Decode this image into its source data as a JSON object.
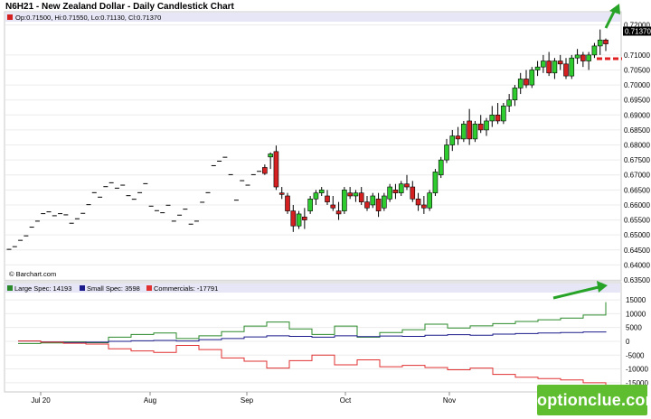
{
  "title": "N6H21 - New Zealand Dollar - Daily Candlestick Chart",
  "ohlc_label": "Op:0.71500, Hi:0.71550, Lo:0.71130, Cl:0.71370",
  "price_tag": "0.71370",
  "source_credit": "© Barchart.com",
  "watermark": "optionclue.com",
  "colors": {
    "up": "#2ecc2e",
    "down": "#d42020",
    "annotation": "#27a327",
    "dashed": "#e02020",
    "large": "#2a8a2a",
    "small": "#1a1a8a",
    "commercials": "#e03030"
  },
  "chart_data": [
    {
      "type": "candlestick",
      "title": "N6H21 - New Zealand Dollar - Daily Candlestick Chart",
      "ylim": [
        0.635,
        0.7205
      ],
      "y_ticks": [
        "0.72000",
        "0.71000",
        "0.70500",
        "0.70000",
        "0.69500",
        "0.69000",
        "0.68500",
        "0.68000",
        "0.67500",
        "0.67000",
        "0.66500",
        "0.66000",
        "0.65500",
        "0.65000",
        "0.64500",
        "0.64000",
        "0.63500"
      ],
      "x_ticks": [
        "Jul 20",
        "Aug",
        "Sep",
        "Oct",
        "Nov"
      ],
      "annotations": [
        "green arrow up",
        "red dashed level 0.7050"
      ],
      "ohlc": [
        [
          0.645,
          0.6455,
          0.6448,
          0.6452
        ],
        [
          0.646,
          0.6464,
          0.6457,
          0.6461
        ],
        [
          0.648,
          0.6484,
          0.6478,
          0.6482
        ],
        [
          0.6495,
          0.6499,
          0.6493,
          0.6497
        ],
        [
          0.6525,
          0.6529,
          0.6522,
          0.6526
        ],
        [
          0.6545,
          0.6549,
          0.6542,
          0.6546
        ],
        [
          0.657,
          0.6574,
          0.6568,
          0.6571
        ],
        [
          0.6578,
          0.6581,
          0.6575,
          0.6577
        ],
        [
          0.6563,
          0.6566,
          0.656,
          0.6564
        ],
        [
          0.6572,
          0.6575,
          0.6569,
          0.6571
        ],
        [
          0.6568,
          0.6571,
          0.6565,
          0.6567
        ],
        [
          0.6538,
          0.6541,
          0.6535,
          0.6539
        ],
        [
          0.6555,
          0.6558,
          0.6552,
          0.6554
        ],
        [
          0.6572,
          0.6575,
          0.6569,
          0.6572
        ],
        [
          0.66,
          0.6603,
          0.6597,
          0.6601
        ],
        [
          0.664,
          0.6643,
          0.6637,
          0.6641
        ],
        [
          0.6625,
          0.6628,
          0.6622,
          0.6626
        ],
        [
          0.666,
          0.6663,
          0.6657,
          0.6661
        ],
        [
          0.6673,
          0.6676,
          0.667,
          0.6674
        ],
        [
          0.6655,
          0.6658,
          0.6652,
          0.6656
        ],
        [
          0.6665,
          0.6668,
          0.6662,
          0.6666
        ],
        [
          0.663,
          0.6633,
          0.6627,
          0.6631
        ],
        [
          0.6618,
          0.6621,
          0.6615,
          0.6619
        ],
        [
          0.664,
          0.6643,
          0.6637,
          0.6641
        ],
        [
          0.667,
          0.6673,
          0.6667,
          0.6671
        ],
        [
          0.6595,
          0.6598,
          0.6592,
          0.6596
        ],
        [
          0.658,
          0.6583,
          0.6577,
          0.6581
        ],
        [
          0.6573,
          0.6576,
          0.657,
          0.6574
        ],
        [
          0.6598,
          0.6601,
          0.6595,
          0.6599
        ],
        [
          0.6545,
          0.6548,
          0.6542,
          0.6546
        ],
        [
          0.6565,
          0.6568,
          0.6562,
          0.6566
        ],
        [
          0.6585,
          0.6588,
          0.6582,
          0.6586
        ],
        [
          0.6535,
          0.6538,
          0.6532,
          0.6536
        ],
        [
          0.6545,
          0.6548,
          0.6542,
          0.6546
        ],
        [
          0.6608,
          0.6611,
          0.6605,
          0.6609
        ],
        [
          0.664,
          0.6643,
          0.6637,
          0.6641
        ],
        [
          0.673,
          0.6733,
          0.6727,
          0.6731
        ],
        [
          0.6745,
          0.6748,
          0.6742,
          0.6746
        ],
        [
          0.6758,
          0.6761,
          0.6755,
          0.6759
        ],
        [
          0.67,
          0.6703,
          0.6697,
          0.6701
        ],
        [
          0.6615,
          0.6618,
          0.6612,
          0.6616
        ],
        [
          0.668,
          0.6683,
          0.6677,
          0.6681
        ],
        [
          0.6665,
          0.6668,
          0.6662,
          0.6666
        ],
        [
          0.67,
          0.6703,
          0.6697,
          0.6701
        ],
        [
          0.671,
          0.6716,
          0.6705,
          0.6712
        ],
        [
          0.6725,
          0.6735,
          0.67,
          0.6705
        ],
        [
          0.676,
          0.6775,
          0.672,
          0.677
        ],
        [
          0.6778,
          0.6798,
          0.665,
          0.666
        ],
        [
          0.664,
          0.666,
          0.662,
          0.6635
        ],
        [
          0.663,
          0.664,
          0.657,
          0.658
        ],
        [
          0.658,
          0.66,
          0.651,
          0.653
        ],
        [
          0.653,
          0.658,
          0.652,
          0.657
        ],
        [
          0.656,
          0.659,
          0.652,
          0.655
        ],
        [
          0.658,
          0.663,
          0.657,
          0.662
        ],
        [
          0.662,
          0.665,
          0.66,
          0.664
        ],
        [
          0.664,
          0.666,
          0.663,
          0.665
        ],
        [
          0.663,
          0.665,
          0.66,
          0.661
        ],
        [
          0.66,
          0.663,
          0.658,
          0.659
        ],
        [
          0.658,
          0.661,
          0.655,
          0.657
        ],
        [
          0.658,
          0.666,
          0.657,
          0.665
        ],
        [
          0.664,
          0.666,
          0.662,
          0.663
        ],
        [
          0.663,
          0.665,
          0.661,
          0.664
        ],
        [
          0.664,
          0.666,
          0.66,
          0.661
        ],
        [
          0.661,
          0.663,
          0.658,
          0.659
        ],
        [
          0.66,
          0.664,
          0.659,
          0.663
        ],
        [
          0.662,
          0.664,
          0.656,
          0.658
        ],
        [
          0.659,
          0.664,
          0.658,
          0.663
        ],
        [
          0.662,
          0.667,
          0.661,
          0.666
        ],
        [
          0.665,
          0.667,
          0.662,
          0.664
        ],
        [
          0.664,
          0.668,
          0.663,
          0.667
        ],
        [
          0.667,
          0.67,
          0.665,
          0.666
        ],
        [
          0.666,
          0.668,
          0.661,
          0.662
        ],
        [
          0.662,
          0.664,
          0.658,
          0.66
        ],
        [
          0.66,
          0.663,
          0.657,
          0.659
        ],
        [
          0.659,
          0.665,
          0.658,
          0.664
        ],
        [
          0.664,
          0.672,
          0.663,
          0.671
        ],
        [
          0.67,
          0.676,
          0.669,
          0.675
        ],
        [
          0.675,
          0.682,
          0.674,
          0.68
        ],
        [
          0.68,
          0.685,
          0.678,
          0.683
        ],
        [
          0.683,
          0.686,
          0.68,
          0.682
        ],
        [
          0.682,
          0.688,
          0.681,
          0.687
        ],
        [
          0.688,
          0.692,
          0.68,
          0.682
        ],
        [
          0.682,
          0.688,
          0.681,
          0.687
        ],
        [
          0.687,
          0.69,
          0.684,
          0.685
        ],
        [
          0.685,
          0.689,
          0.683,
          0.688
        ],
        [
          0.688,
          0.693,
          0.686,
          0.69
        ],
        [
          0.69,
          0.694,
          0.687,
          0.688
        ],
        [
          0.688,
          0.694,
          0.687,
          0.693
        ],
        [
          0.693,
          0.697,
          0.691,
          0.695
        ],
        [
          0.695,
          0.7,
          0.693,
          0.699
        ],
        [
          0.699,
          0.704,
          0.697,
          0.702
        ],
        [
          0.702,
          0.705,
          0.699,
          0.7
        ],
        [
          0.7,
          0.706,
          0.699,
          0.705
        ],
        [
          0.705,
          0.708,
          0.703,
          0.706
        ],
        [
          0.706,
          0.71,
          0.704,
          0.708
        ],
        [
          0.708,
          0.711,
          0.703,
          0.704
        ],
        [
          0.704,
          0.709,
          0.702,
          0.708
        ],
        [
          0.708,
          0.71,
          0.705,
          0.707
        ],
        [
          0.707,
          0.709,
          0.702,
          0.703
        ],
        [
          0.703,
          0.71,
          0.702,
          0.709
        ],
        [
          0.709,
          0.712,
          0.707,
          0.71
        ],
        [
          0.71,
          0.711,
          0.706,
          0.708
        ],
        [
          0.708,
          0.711,
          0.705,
          0.71
        ],
        [
          0.71,
          0.714,
          0.709,
          0.713
        ],
        [
          0.713,
          0.7185,
          0.71,
          0.715
        ],
        [
          0.715,
          0.7155,
          0.7113,
          0.7137
        ]
      ]
    },
    {
      "type": "line",
      "title": "Commitments of Traders",
      "ylim": [
        -18000,
        17000
      ],
      "y_ticks": [
        "15000",
        "10000",
        "5000",
        "0",
        "-5000",
        "-10000",
        "-15000"
      ],
      "legend": [
        "Large Spec: 14193",
        "Small Spec: 3598",
        "Commercials: -17791"
      ],
      "series": [
        {
          "name": "Large Spec",
          "values": [
            -800,
            -600,
            -200,
            -500,
            1500,
            2500,
            3000,
            1000,
            2000,
            3500,
            5500,
            7000,
            4500,
            2500,
            5500,
            1500,
            3200,
            4200,
            6200,
            4800,
            5600,
            6400,
            7200,
            7800,
            8400,
            9500,
            14193
          ]
        },
        {
          "name": "Small Spec",
          "values": [
            100,
            -200,
            -400,
            -300,
            0,
            200,
            300,
            100,
            600,
            1000,
            1600,
            2000,
            1800,
            1500,
            2000,
            1700,
            1900,
            1800,
            2200,
            2400,
            2200,
            2600,
            2800,
            3000,
            3200,
            3400,
            3598
          ]
        },
        {
          "name": "Commercials",
          "values": [
            100,
            -300,
            -700,
            -1000,
            -2700,
            -3500,
            -4000,
            -1500,
            -3000,
            -6000,
            -7200,
            -9700,
            -7000,
            -5000,
            -8500,
            -6700,
            -9200,
            -8700,
            -9500,
            -10300,
            -9700,
            -12000,
            -13000,
            -13500,
            -14000,
            -15000,
            -17791
          ]
        }
      ]
    }
  ]
}
